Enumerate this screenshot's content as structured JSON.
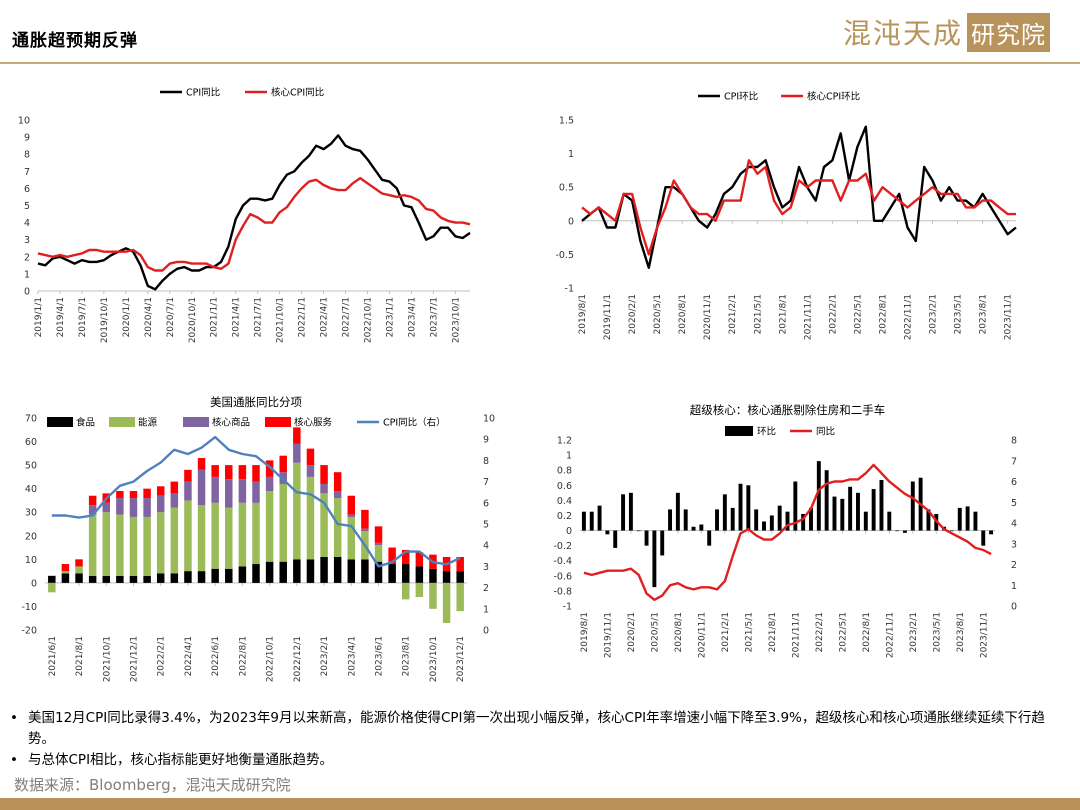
{
  "header": {
    "title": "通胀超预期反弹",
    "brand_main": "混沌天成",
    "brand_box": "研究院"
  },
  "colors": {
    "black": "#000000",
    "red": "#e02020",
    "green": "#9bbb59",
    "purple": "#8064a2",
    "blue": "#4f81bd",
    "gold": "#b8945c"
  },
  "chart_data": [
    {
      "id": "cpi-yoy",
      "type": "line",
      "title": "",
      "legend_position": "top",
      "x": [
        "2019/1/1",
        "2019/2/1",
        "2019/3/1",
        "2019/4/1",
        "2019/5/1",
        "2019/6/1",
        "2019/7/1",
        "2019/8/1",
        "2019/9/1",
        "2019/10/1",
        "2019/11/1",
        "2019/12/1",
        "2020/1/1",
        "2020/2/1",
        "2020/3/1",
        "2020/4/1",
        "2020/5/1",
        "2020/6/1",
        "2020/7/1",
        "2020/8/1",
        "2020/9/1",
        "2020/10/1",
        "2020/11/1",
        "2020/12/1",
        "2021/1/1",
        "2021/2/1",
        "2021/3/1",
        "2021/4/1",
        "2021/5/1",
        "2021/6/1",
        "2021/7/1",
        "2021/8/1",
        "2021/9/1",
        "2021/10/1",
        "2021/11/1",
        "2021/12/1",
        "2022/1/1",
        "2022/2/1",
        "2022/3/1",
        "2022/4/1",
        "2022/5/1",
        "2022/6/1",
        "2022/7/1",
        "2022/8/1",
        "2022/9/1",
        "2022/10/1",
        "2022/11/1",
        "2022/12/1",
        "2023/1/1",
        "2023/2/1",
        "2023/3/1",
        "2023/4/1",
        "2023/5/1",
        "2023/6/1",
        "2023/7/1",
        "2023/8/1",
        "2023/9/1",
        "2023/10/1",
        "2023/11/1",
        "2023/12/1"
      ],
      "x_tick_labels": [
        "2019/1/1",
        "2019/4/1",
        "2019/7/1",
        "2019/10/1",
        "2020/1/1",
        "2020/4/1",
        "2020/7/1",
        "2020/10/1",
        "2021/1/1",
        "2021/4/1",
        "2021/7/1",
        "2021/10/1",
        "2022/1/1",
        "2022/4/1",
        "2022/7/1",
        "2022/10/1",
        "2023/1/1",
        "2023/4/1",
        "2023/7/1",
        "2023/10/1"
      ],
      "ylim": [
        0,
        10
      ],
      "y_ticks": [
        0,
        1,
        2,
        3,
        4,
        5,
        6,
        7,
        8,
        9,
        10
      ],
      "series": [
        {
          "name": "CPI同比",
          "color": "#000000",
          "values": [
            1.6,
            1.5,
            1.9,
            2.0,
            1.8,
            1.6,
            1.8,
            1.7,
            1.7,
            1.8,
            2.1,
            2.3,
            2.5,
            2.3,
            1.5,
            0.3,
            0.1,
            0.6,
            1.0,
            1.3,
            1.4,
            1.2,
            1.2,
            1.4,
            1.4,
            1.7,
            2.6,
            4.2,
            5.0,
            5.4,
            5.4,
            5.3,
            5.4,
            6.2,
            6.8,
            7.0,
            7.5,
            7.9,
            8.5,
            8.3,
            8.6,
            9.1,
            8.5,
            8.3,
            8.2,
            7.7,
            7.1,
            6.5,
            6.4,
            6.0,
            5.0,
            4.9,
            4.0,
            3.0,
            3.2,
            3.7,
            3.7,
            3.2,
            3.1,
            3.4
          ]
        },
        {
          "name": "核心CPI同比",
          "color": "#e02020",
          "values": [
            2.2,
            2.1,
            2.0,
            2.1,
            2.0,
            2.1,
            2.2,
            2.4,
            2.4,
            2.3,
            2.3,
            2.3,
            2.3,
            2.4,
            2.1,
            1.4,
            1.2,
            1.2,
            1.6,
            1.7,
            1.7,
            1.6,
            1.6,
            1.6,
            1.4,
            1.3,
            1.6,
            3.0,
            3.8,
            4.5,
            4.3,
            4.0,
            4.0,
            4.6,
            4.9,
            5.5,
            6.0,
            6.4,
            6.5,
            6.2,
            6.0,
            5.9,
            5.9,
            6.3,
            6.6,
            6.3,
            6.0,
            5.7,
            5.6,
            5.5,
            5.6,
            5.5,
            5.3,
            4.8,
            4.7,
            4.3,
            4.1,
            4.0,
            4.0,
            3.9
          ]
        }
      ]
    },
    {
      "id": "cpi-mom",
      "type": "line",
      "title": "",
      "legend_position": "top",
      "x": [
        "2019/8/1",
        "2019/9/1",
        "2019/10/1",
        "2019/11/1",
        "2019/12/1",
        "2020/1/1",
        "2020/2/1",
        "2020/3/1",
        "2020/4/1",
        "2020/5/1",
        "2020/6/1",
        "2020/7/1",
        "2020/8/1",
        "2020/9/1",
        "2020/10/1",
        "2020/11/1",
        "2020/12/1",
        "2021/1/1",
        "2021/2/1",
        "2021/3/1",
        "2021/4/1",
        "2021/5/1",
        "2021/6/1",
        "2021/7/1",
        "2021/8/1",
        "2021/9/1",
        "2021/10/1",
        "2021/11/1",
        "2021/12/1",
        "2022/1/1",
        "2022/2/1",
        "2022/3/1",
        "2022/4/1",
        "2022/5/1",
        "2022/6/1",
        "2022/7/1",
        "2022/8/1",
        "2022/9/1",
        "2022/10/1",
        "2022/11/1",
        "2022/12/1",
        "2023/1/1",
        "2023/2/1",
        "2023/3/1",
        "2023/4/1",
        "2023/5/1",
        "2023/6/1",
        "2023/7/1",
        "2023/8/1",
        "2023/9/1",
        "2023/10/1",
        "2023/11/1",
        "2023/12/1"
      ],
      "x_tick_labels": [
        "2019/8/1",
        "2019/11/1",
        "2020/2/1",
        "2020/5/1",
        "2020/8/1",
        "2020/11/1",
        "2021/2/1",
        "2021/5/1",
        "2021/8/1",
        "2021/11/1",
        "2022/2/1",
        "2022/5/1",
        "2022/8/1",
        "2022/11/1",
        "2023/2/1",
        "2023/5/1",
        "2023/8/1",
        "2023/11/1"
      ],
      "ylim": [
        -1,
        1.5
      ],
      "y_ticks": [
        -1,
        -0.5,
        0,
        0.5,
        1,
        1.5
      ],
      "series": [
        {
          "name": "CPI环比",
          "color": "#000000",
          "values": [
            0.0,
            0.1,
            0.2,
            -0.1,
            -0.1,
            0.4,
            0.3,
            -0.3,
            -0.7,
            -0.1,
            0.5,
            0.5,
            0.4,
            0.2,
            0.0,
            -0.1,
            0.1,
            0.4,
            0.5,
            0.7,
            0.8,
            0.8,
            0.9,
            0.5,
            0.2,
            0.3,
            0.8,
            0.5,
            0.3,
            0.8,
            0.9,
            1.3,
            0.6,
            1.1,
            1.4,
            0.0,
            0.0,
            0.2,
            0.4,
            -0.1,
            -0.3,
            0.8,
            0.6,
            0.3,
            0.5,
            0.3,
            0.3,
            0.2,
            0.4,
            0.2,
            0.0,
            -0.2,
            -0.1
          ]
        },
        {
          "name": "核心CPI环比",
          "color": "#e02020",
          "values": [
            0.2,
            0.1,
            0.2,
            0.1,
            0.0,
            0.4,
            0.4,
            -0.1,
            -0.5,
            -0.1,
            0.2,
            0.6,
            0.4,
            0.2,
            0.1,
            0.1,
            0.0,
            0.3,
            0.3,
            0.3,
            0.9,
            0.7,
            0.8,
            0.3,
            0.1,
            0.2,
            0.6,
            0.5,
            0.6,
            0.6,
            0.6,
            0.3,
            0.6,
            0.6,
            0.7,
            0.3,
            0.5,
            0.4,
            0.3,
            0.2,
            0.3,
            0.4,
            0.5,
            0.4,
            0.4,
            0.4,
            0.2,
            0.2,
            0.3,
            0.3,
            0.2,
            0.1,
            0.1
          ]
        }
      ]
    },
    {
      "id": "us-inflation-components",
      "type": "bar",
      "stacked": true,
      "title": "美国通胀同比分项",
      "legend_position": "top",
      "x": [
        "2021/6/1",
        "2021/7/1",
        "2021/8/1",
        "2021/9/1",
        "2021/10/1",
        "2021/11/1",
        "2021/12/1",
        "2022/1/1",
        "2022/2/1",
        "2022/3/1",
        "2022/4/1",
        "2022/5/1",
        "2022/6/1",
        "2022/7/1",
        "2022/8/1",
        "2022/9/1",
        "2022/10/1",
        "2022/11/1",
        "2022/12/1",
        "2023/1/1",
        "2023/2/1",
        "2023/3/1",
        "2023/4/1",
        "2023/5/1",
        "2023/6/1",
        "2023/7/1",
        "2023/8/1",
        "2023/9/1",
        "2023/10/1",
        "2023/11/1",
        "2023/12/1"
      ],
      "x_tick_labels": [
        "2021/6/1",
        "2021/8/1",
        "2021/10/1",
        "2021/12/1",
        "2022/2/1",
        "2022/4/1",
        "2022/6/1",
        "2022/8/1",
        "2022/10/1",
        "2022/12/1",
        "2023/2/1",
        "2023/4/1",
        "2023/6/1",
        "2023/8/1",
        "2023/10/1",
        "2023/12/1"
      ],
      "ylim": [
        -20,
        70
      ],
      "y_ticks": [
        -20,
        -10,
        0,
        10,
        20,
        30,
        40,
        50,
        60,
        70
      ],
      "y2lim": [
        0,
        10
      ],
      "y2_ticks": [
        0,
        1,
        2,
        3,
        4,
        5,
        6,
        7,
        8,
        9,
        10
      ],
      "series": [
        {
          "name": "食品",
          "color": "#000000",
          "values": [
            3,
            4,
            4,
            3,
            3,
            3,
            3,
            3,
            4,
            4,
            5,
            5,
            6,
            6,
            7,
            8,
            9,
            9,
            10,
            10,
            11,
            11,
            10,
            10,
            9,
            8,
            8,
            7,
            6,
            5,
            5
          ]
        },
        {
          "name": "能源",
          "color": "#9bbb59",
          "values": [
            -4,
            1,
            3,
            26,
            27,
            26,
            25,
            25,
            26,
            28,
            30,
            28,
            28,
            26,
            27,
            26,
            30,
            33,
            41,
            35,
            27,
            25,
            18,
            12,
            7,
            0,
            -7,
            -6,
            -11,
            -17,
            -12
          ]
        },
        {
          "name": "核心商品",
          "color": "#8064a2",
          "values": [
            0,
            0,
            0,
            4,
            4,
            7,
            8,
            8,
            7,
            6,
            8,
            15,
            11,
            12,
            10,
            9,
            6,
            5,
            8,
            5,
            4,
            3,
            1,
            1,
            1,
            0,
            0,
            0,
            0,
            0,
            0
          ]
        },
        {
          "name": "核心服务",
          "color": "#ff0000",
          "values": [
            0,
            3,
            3,
            4,
            4,
            3,
            3,
            4,
            4,
            5,
            5,
            5,
            5,
            6,
            6,
            7,
            7,
            7,
            7,
            7,
            8,
            8,
            8,
            8,
            7,
            7,
            6,
            6,
            6,
            6,
            6
          ]
        },
        {
          "name": "CPI同比（右）",
          "color": "#4f81bd",
          "axis": "right",
          "values": [
            5.4,
            5.4,
            5.3,
            5.4,
            6.2,
            6.8,
            7.0,
            7.5,
            7.9,
            8.5,
            8.3,
            8.6,
            9.1,
            8.5,
            8.3,
            8.2,
            7.7,
            7.1,
            6.5,
            6.4,
            6.0,
            5.0,
            4.9,
            4.0,
            3.0,
            3.2,
            3.7,
            3.7,
            3.2,
            3.1,
            3.4
          ]
        }
      ]
    },
    {
      "id": "supercore",
      "type": "bar",
      "title": "超级核心：核心通胀剔除住房和二手车",
      "legend_position": "top",
      "x": [
        "2019/8/1",
        "2019/9/1",
        "2019/10/1",
        "2019/11/1",
        "2019/12/1",
        "2020/1/1",
        "2020/2/1",
        "2020/3/1",
        "2020/4/1",
        "2020/5/1",
        "2020/6/1",
        "2020/7/1",
        "2020/8/1",
        "2020/9/1",
        "2020/10/1",
        "2020/11/1",
        "2020/12/1",
        "2021/1/1",
        "2021/2/1",
        "2021/3/1",
        "2021/4/1",
        "2021/5/1",
        "2021/6/1",
        "2021/7/1",
        "2021/8/1",
        "2021/9/1",
        "2021/10/1",
        "2021/11/1",
        "2021/12/1",
        "2022/1/1",
        "2022/2/1",
        "2022/3/1",
        "2022/4/1",
        "2022/5/1",
        "2022/6/1",
        "2022/7/1",
        "2022/8/1",
        "2022/9/1",
        "2022/10/1",
        "2022/11/1",
        "2022/12/1",
        "2023/1/1",
        "2023/2/1",
        "2023/3/1",
        "2023/4/1",
        "2023/5/1",
        "2023/6/1",
        "2023/7/1",
        "2023/8/1",
        "2023/9/1",
        "2023/10/1",
        "2023/11/1",
        "2023/12/1"
      ],
      "x_tick_labels": [
        "2019/8/1",
        "2019/11/1",
        "2020/2/1",
        "2020/5/1",
        "2020/8/1",
        "2020/11/1",
        "2021/2/1",
        "2021/5/1",
        "2021/8/1",
        "2021/11/1",
        "2022/2/1",
        "2022/5/1",
        "2022/8/1",
        "2022/11/1",
        "2023/2/1",
        "2023/5/1",
        "2023/8/1",
        "2023/11/1"
      ],
      "ylim": [
        -1,
        1.2
      ],
      "y_ticks": [
        -1,
        -0.8,
        -0.6,
        -0.4,
        -0.2,
        0,
        0.2,
        0.4,
        0.6,
        0.8,
        1,
        1.2
      ],
      "y2lim": [
        0,
        8
      ],
      "y2_ticks": [
        0,
        1,
        2,
        3,
        4,
        5,
        6,
        7,
        8
      ],
      "series": [
        {
          "name": "环比",
          "color": "#000000",
          "values": [
            0.25,
            0.25,
            0.33,
            -0.05,
            -0.23,
            0.48,
            0.5,
            0.0,
            -0.2,
            -0.75,
            -0.33,
            0.28,
            0.5,
            0.28,
            0.05,
            0.08,
            -0.2,
            0.28,
            0.48,
            0.3,
            0.62,
            0.6,
            0.28,
            0.12,
            0.2,
            0.33,
            0.25,
            0.65,
            0.22,
            0.3,
            0.92,
            0.8,
            0.45,
            0.42,
            0.58,
            0.5,
            0.25,
            0.55,
            0.67,
            0.25,
            0.0,
            -0.03,
            0.65,
            0.7,
            0.28,
            0.22,
            0.05,
            0.0,
            0.3,
            0.32,
            0.25,
            -0.2,
            -0.05
          ]
        },
        {
          "name": "同比",
          "color": "#e02020",
          "axis": "right",
          "values": [
            1.6,
            1.5,
            1.6,
            1.7,
            1.7,
            1.7,
            1.8,
            1.5,
            0.6,
            0.3,
            0.5,
            1.0,
            1.1,
            0.9,
            0.8,
            0.9,
            0.9,
            0.8,
            1.2,
            2.4,
            3.5,
            3.7,
            3.4,
            3.2,
            3.2,
            3.5,
            3.9,
            4.0,
            4.2,
            4.7,
            5.6,
            5.9,
            6.0,
            6.0,
            6.1,
            6.1,
            6.4,
            6.8,
            6.4,
            6.0,
            5.7,
            5.4,
            5.2,
            4.9,
            4.6,
            4.1,
            3.7,
            3.5,
            3.3,
            3.1,
            2.8,
            2.7,
            2.5
          ]
        }
      ]
    }
  ],
  "bullets": [
    "美国12月CPI同比录得3.4%，为2023年9月以来新高，能源价格使得CPI第一次出现小幅反弹，核心CPI年率增速小幅下降至3.9%，超级核心和核心项通胀继续延续下行趋势。",
    "与总体CPI相比，核心指标能更好地衡量通胀趋势。"
  ],
  "source": "数据来源：Bloomberg，混沌天成研究院"
}
